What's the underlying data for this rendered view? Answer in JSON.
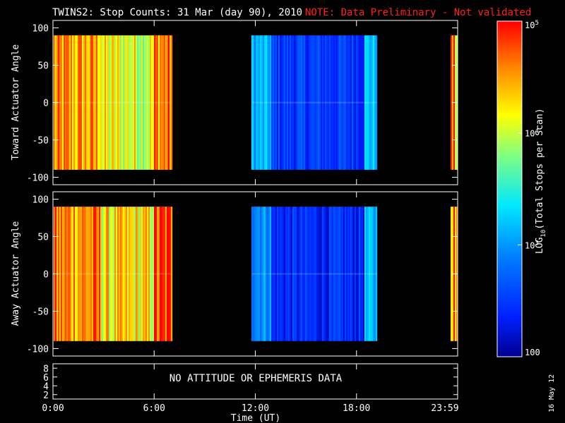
{
  "title": {
    "main": "TWINS2: Stop Counts: 31 Mar (day  90), 2010",
    "note": "NOTE: Data Preliminary - Not validated"
  },
  "stamp": "16 May 12",
  "colors": {
    "background": "#000000",
    "axes": "#ffffff",
    "note": "#ff2020"
  },
  "chart_data": [
    {
      "type": "heatmap",
      "ylabel": "Toward Actuator Angle",
      "ylim": [
        -110,
        110
      ],
      "yticks": [
        "100",
        "50",
        "0",
        "-50",
        "-100"
      ],
      "ytick_values": [
        100,
        50,
        0,
        -50,
        -100
      ],
      "xlim": [
        0,
        24
      ],
      "x_unit": "hours UT",
      "angle_range": [
        -90,
        90
      ],
      "data_segments": [
        {
          "start": 0.05,
          "end": 7.0,
          "level": "high",
          "log10_counts": 4.2
        },
        {
          "start": 11.8,
          "end": 19.2,
          "level": "low",
          "log10_counts": 2.6
        },
        {
          "start": 23.6,
          "end": 24.0,
          "level": "high",
          "log10_counts": 4.3
        }
      ]
    },
    {
      "type": "heatmap",
      "ylabel": "Away Actuator Angle",
      "ylim": [
        -110,
        110
      ],
      "yticks": [
        "100",
        "50",
        "0",
        "-50",
        "-100"
      ],
      "ytick_values": [
        100,
        50,
        0,
        -50,
        -100
      ],
      "xlim": [
        0,
        24
      ],
      "x_unit": "hours UT",
      "angle_range": [
        -90,
        90
      ],
      "data_segments": [
        {
          "start": 0.05,
          "end": 7.0,
          "level": "high",
          "log10_counts": 4.3
        },
        {
          "start": 11.8,
          "end": 19.2,
          "level": "low",
          "log10_counts": 2.5
        },
        {
          "start": 23.6,
          "end": 24.0,
          "level": "high",
          "log10_counts": 4.4
        }
      ]
    }
  ],
  "ephemeris_panel": {
    "message": "NO ATTITUDE OR EPHEMERIS DATA",
    "yticks": [
      "8",
      "6",
      "4",
      "2"
    ],
    "ytick_values": [
      8,
      6,
      4,
      2
    ],
    "ylim": [
      1,
      9
    ]
  },
  "xaxis": {
    "label": "Time (UT)",
    "ticks": [
      "0:00",
      "6:00",
      "12:00",
      "18:00",
      "23:59"
    ],
    "tick_values": [
      0,
      6,
      12,
      18,
      24
    ]
  },
  "colorbar": {
    "label_prefix": "LOG",
    "label_sub": "10",
    "label_suffix": "(Total Stops per Scan)",
    "ticks": [
      {
        "base": "10",
        "exp": "5",
        "value": 5
      },
      {
        "base": "10",
        "exp": "4",
        "value": 4
      },
      {
        "base": "10",
        "exp": "3",
        "value": 3
      },
      {
        "base": "100",
        "exp": "",
        "value": 2
      }
    ],
    "range": [
      2,
      5
    ],
    "scale": "log"
  }
}
